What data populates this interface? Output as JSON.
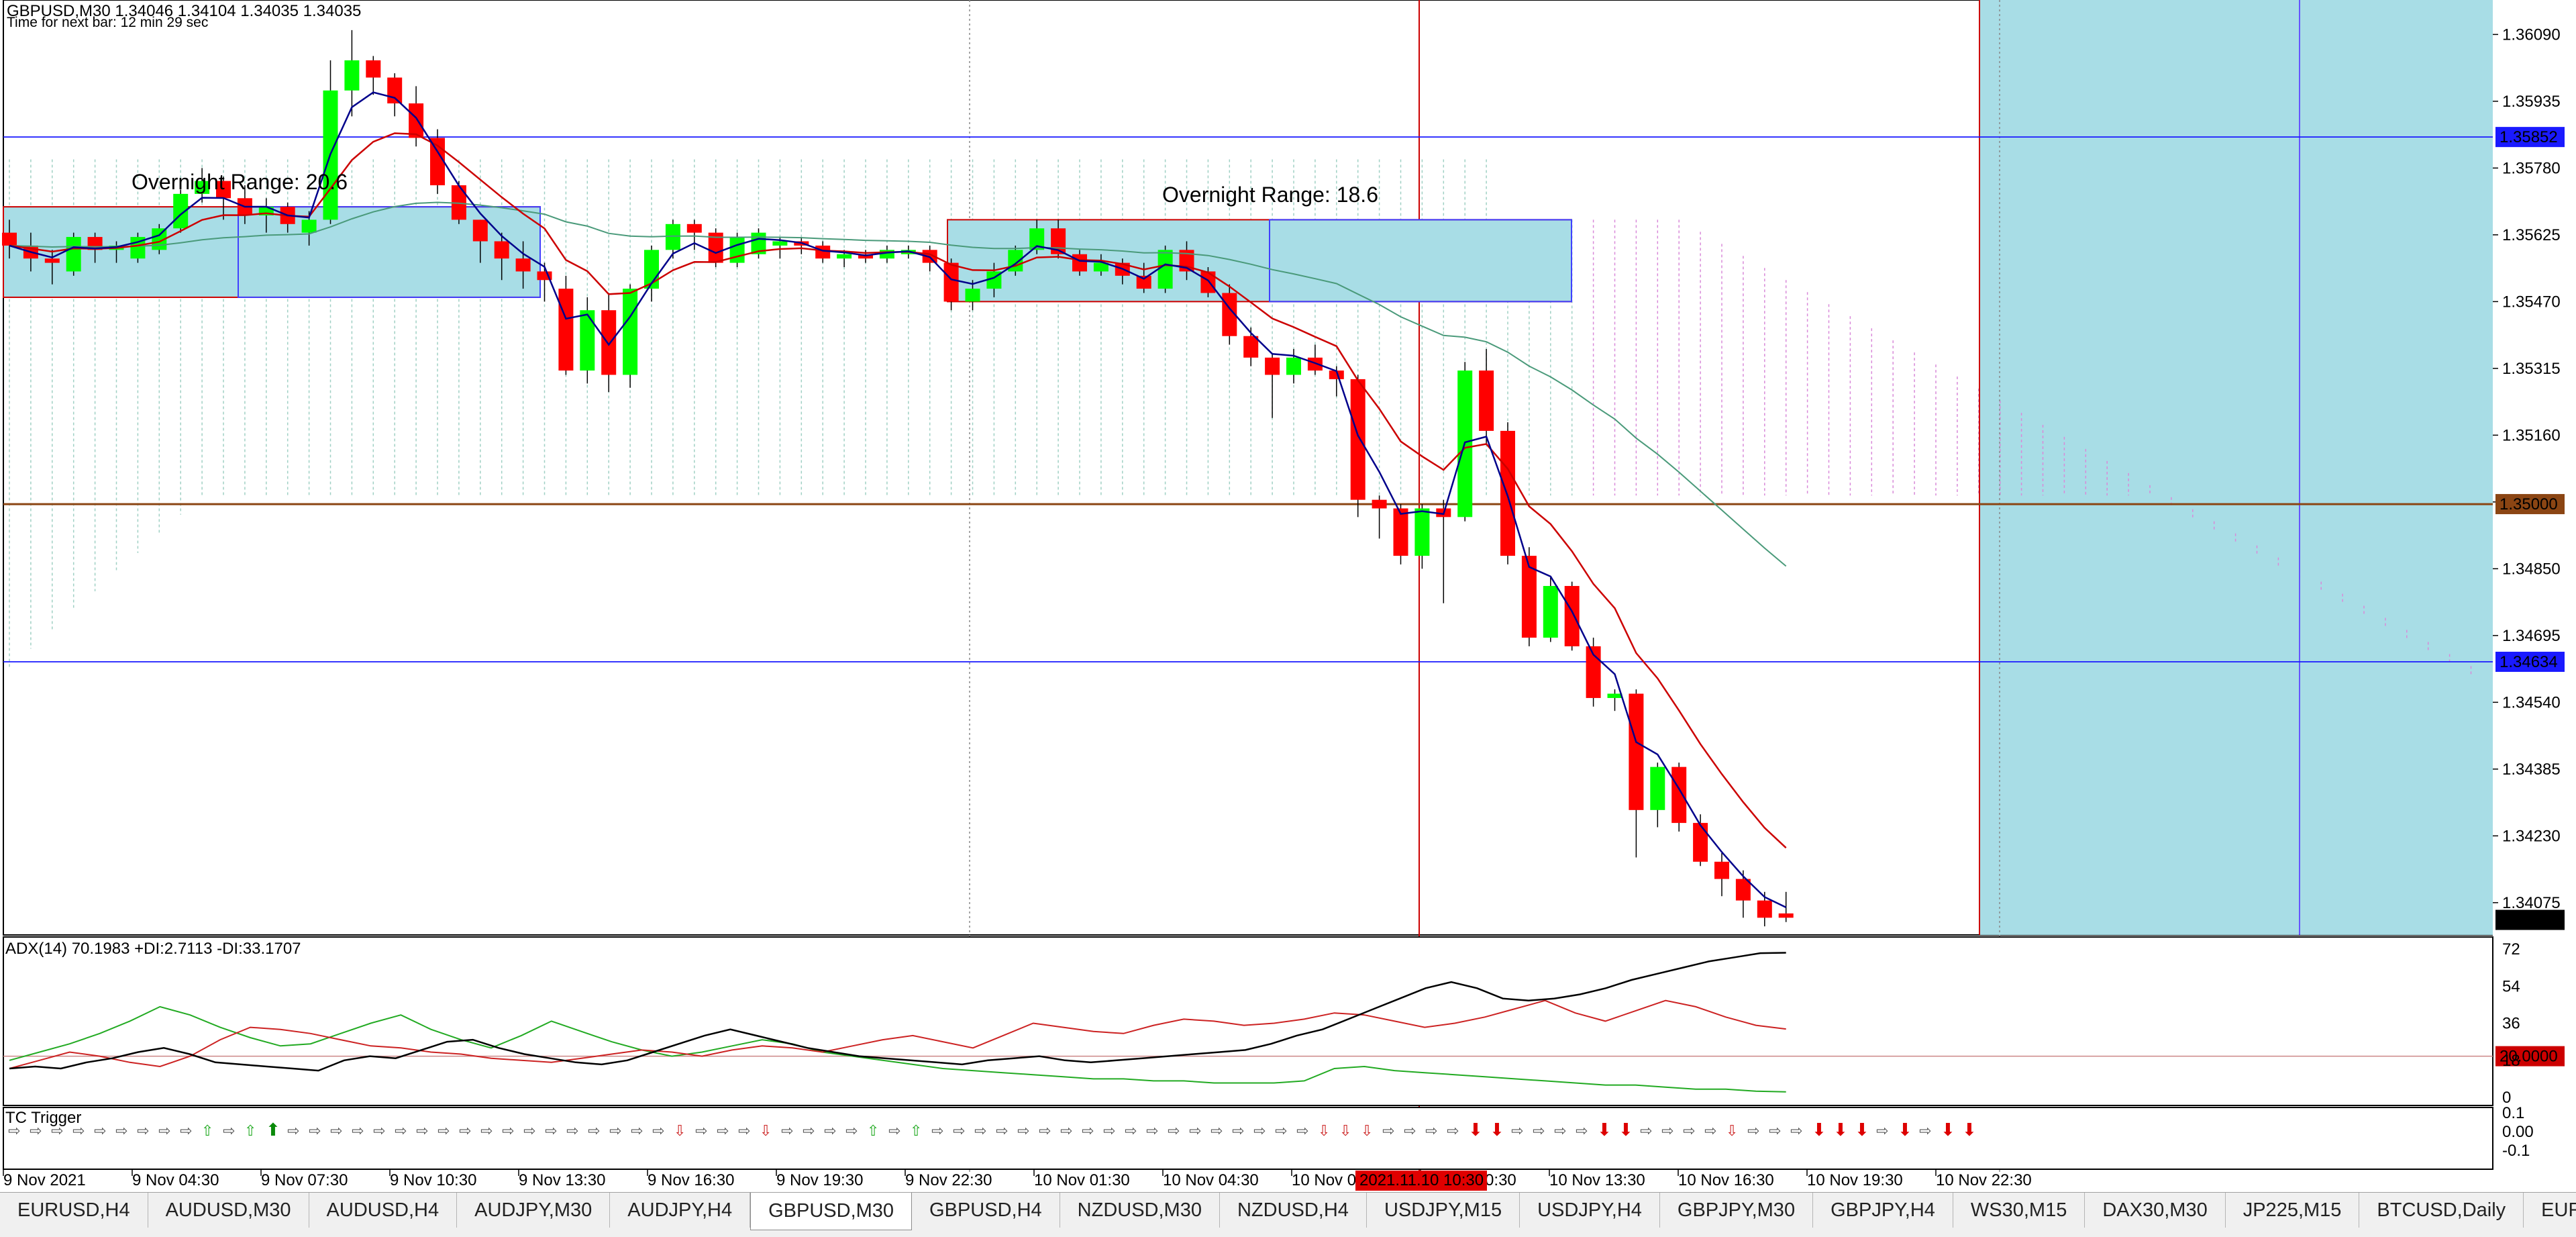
{
  "header": {
    "symbol_line": "GBPUSD,M30  1.34046 1.34104 1.34035 1.34035",
    "timer": "Time for next bar: 12 min 29 sec"
  },
  "annotations": {
    "overnight_range_1": "Overnight Range: 20.6",
    "overnight_range_2": "Overnight Range: 18.6"
  },
  "price_axis": {
    "ticks": [
      "1.36090",
      "1.35935",
      "1.35780",
      "1.35625",
      "1.35470",
      "1.35315",
      "1.35160",
      "1.35005",
      "1.34850",
      "1.34695",
      "1.34540",
      "1.34385",
      "1.34230",
      "1.34075"
    ],
    "markers": [
      {
        "price": 1.35852,
        "label": "1.35852",
        "color": "#1a1aff"
      },
      {
        "price": 1.35,
        "label": "1.35000",
        "color": "#8b4513"
      },
      {
        "price": 1.34634,
        "label": "1.34634",
        "color": "#1a1aff"
      },
      {
        "price": 1.34035,
        "label": "1.34035",
        "color": "#000000"
      }
    ]
  },
  "time_axis": {
    "labels": [
      "9 Nov 2021",
      "9 Nov 04:30",
      "9 Nov 07:30",
      "9 Nov 10:30",
      "9 Nov 13:30",
      "9 Nov 16:30",
      "9 Nov 19:30",
      "9 Nov 22:30",
      "10 Nov 01:30",
      "10 Nov 04:30",
      "10 Nov 07:30",
      "10 Nov 10:30",
      "10 Nov 13:30",
      "10 Nov 16:30",
      "10 Nov 19:30",
      "10 Nov 22:30"
    ],
    "crosshair_label": "2021.11.10 10:30"
  },
  "adx_panel": {
    "title": "ADX(14) 70.1983 +DI:2.7113 -DI:33.1707",
    "ticks": [
      "72",
      "54",
      "36",
      "18",
      "0"
    ],
    "level_label": "20.0000"
  },
  "tc_panel": {
    "title": "TC Trigger",
    "ticks": [
      "0.1",
      "0.00",
      "-0.1"
    ]
  },
  "tabs": [
    "EURUSD,H4",
    "AUDUSD,M30",
    "AUDUSD,H4",
    "AUDJPY,M30",
    "AUDJPY,H4",
    "GBPUSD,M30",
    "GBPUSD,H4",
    "NZDUSD,M30",
    "NZDUSD,H4",
    "USDJPY,M15",
    "USDJPY,H4",
    "GBPJPY,M30",
    "GBPJPY,H4",
    "WS30,M15",
    "DAX30,M30",
    "JP225,M15",
    "BTCUSD,Daily",
    "EURU"
  ],
  "active_tab": "GBPUSD,M30",
  "colors": {
    "bull": "#00ff00",
    "bear": "#ff0000",
    "cloud": "#a8dde6",
    "ema_fast": "#00008b",
    "ema_mid": "#cc0000",
    "ema_slow": "#4a9a7a"
  },
  "chart_data": {
    "type": "candlestick",
    "symbol": "GBPUSD",
    "timeframe": "M30",
    "ylim": [
      1.34,
      1.3617
    ],
    "candles": [
      {
        "o": 1.3563,
        "h": 1.3566,
        "l": 1.3557,
        "c": 1.356
      },
      {
        "o": 1.356,
        "h": 1.3563,
        "l": 1.3554,
        "c": 1.3557
      },
      {
        "o": 1.3557,
        "h": 1.3559,
        "l": 1.3551,
        "c": 1.3556
      },
      {
        "o": 1.3554,
        "h": 1.3563,
        "l": 1.3553,
        "c": 1.3562
      },
      {
        "o": 1.3562,
        "h": 1.3563,
        "l": 1.3556,
        "c": 1.3559
      },
      {
        "o": 1.3559,
        "h": 1.3561,
        "l": 1.3556,
        "c": 1.356
      },
      {
        "o": 1.3557,
        "h": 1.3563,
        "l": 1.3556,
        "c": 1.3562
      },
      {
        "o": 1.3559,
        "h": 1.3565,
        "l": 1.3558,
        "c": 1.3564
      },
      {
        "o": 1.3564,
        "h": 1.3573,
        "l": 1.3563,
        "c": 1.3572
      },
      {
        "o": 1.3572,
        "h": 1.3578,
        "l": 1.357,
        "c": 1.3575
      },
      {
        "o": 1.3575,
        "h": 1.3576,
        "l": 1.3566,
        "c": 1.3571
      },
      {
        "o": 1.3571,
        "h": 1.3574,
        "l": 1.3565,
        "c": 1.3567
      },
      {
        "o": 1.3567,
        "h": 1.3571,
        "l": 1.3563,
        "c": 1.3569
      },
      {
        "o": 1.3569,
        "h": 1.357,
        "l": 1.3563,
        "c": 1.3565
      },
      {
        "o": 1.3563,
        "h": 1.3568,
        "l": 1.356,
        "c": 1.3566
      },
      {
        "o": 1.3566,
        "h": 1.3603,
        "l": 1.3565,
        "c": 1.3596
      },
      {
        "o": 1.3596,
        "h": 1.361,
        "l": 1.359,
        "c": 1.3603
      },
      {
        "o": 1.3603,
        "h": 1.3604,
        "l": 1.3595,
        "c": 1.3599
      },
      {
        "o": 1.3599,
        "h": 1.36,
        "l": 1.359,
        "c": 1.3593
      },
      {
        "o": 1.3593,
        "h": 1.3597,
        "l": 1.3583,
        "c": 1.3585
      },
      {
        "o": 1.3585,
        "h": 1.3587,
        "l": 1.3572,
        "c": 1.3574
      },
      {
        "o": 1.3574,
        "h": 1.3575,
        "l": 1.3565,
        "c": 1.3566
      },
      {
        "o": 1.3566,
        "h": 1.3566,
        "l": 1.3556,
        "c": 1.3561
      },
      {
        "o": 1.3561,
        "h": 1.3563,
        "l": 1.3552,
        "c": 1.3557
      },
      {
        "o": 1.3557,
        "h": 1.3561,
        "l": 1.355,
        "c": 1.3554
      },
      {
        "o": 1.3554,
        "h": 1.3556,
        "l": 1.3547,
        "c": 1.3552
      },
      {
        "o": 1.355,
        "h": 1.3553,
        "l": 1.353,
        "c": 1.3531
      },
      {
        "o": 1.3531,
        "h": 1.3548,
        "l": 1.3528,
        "c": 1.3545
      },
      {
        "o": 1.3545,
        "h": 1.3549,
        "l": 1.3526,
        "c": 1.353
      },
      {
        "o": 1.353,
        "h": 1.3551,
        "l": 1.3527,
        "c": 1.355
      },
      {
        "o": 1.355,
        "h": 1.356,
        "l": 1.3547,
        "c": 1.3559
      },
      {
        "o": 1.3559,
        "h": 1.3566,
        "l": 1.3557,
        "c": 1.3565
      },
      {
        "o": 1.3565,
        "h": 1.3566,
        "l": 1.3559,
        "c": 1.3563
      },
      {
        "o": 1.3563,
        "h": 1.3564,
        "l": 1.3555,
        "c": 1.3556
      },
      {
        "o": 1.3556,
        "h": 1.3563,
        "l": 1.3555,
        "c": 1.3562
      },
      {
        "o": 1.3558,
        "h": 1.3564,
        "l": 1.3557,
        "c": 1.3563
      },
      {
        "o": 1.356,
        "h": 1.3562,
        "l": 1.3557,
        "c": 1.3561
      },
      {
        "o": 1.3561,
        "h": 1.3562,
        "l": 1.3558,
        "c": 1.356
      },
      {
        "o": 1.356,
        "h": 1.3561,
        "l": 1.3556,
        "c": 1.3557
      },
      {
        "o": 1.3557,
        "h": 1.3559,
        "l": 1.3555,
        "c": 1.3558
      },
      {
        "o": 1.3558,
        "h": 1.3559,
        "l": 1.3556,
        "c": 1.3557
      },
      {
        "o": 1.3557,
        "h": 1.356,
        "l": 1.3556,
        "c": 1.3559
      },
      {
        "o": 1.3558,
        "h": 1.356,
        "l": 1.3557,
        "c": 1.3559
      },
      {
        "o": 1.3559,
        "h": 1.356,
        "l": 1.3554,
        "c": 1.3556
      },
      {
        "o": 1.3556,
        "h": 1.3557,
        "l": 1.3545,
        "c": 1.3547
      },
      {
        "o": 1.3547,
        "h": 1.3552,
        "l": 1.3545,
        "c": 1.355
      },
      {
        "o": 1.355,
        "h": 1.3556,
        "l": 1.3548,
        "c": 1.3554
      },
      {
        "o": 1.3554,
        "h": 1.356,
        "l": 1.3553,
        "c": 1.3559
      },
      {
        "o": 1.3559,
        "h": 1.3566,
        "l": 1.3558,
        "c": 1.3564
      },
      {
        "o": 1.3564,
        "h": 1.3566,
        "l": 1.3557,
        "c": 1.3558
      },
      {
        "o": 1.3558,
        "h": 1.3559,
        "l": 1.3553,
        "c": 1.3554
      },
      {
        "o": 1.3554,
        "h": 1.3558,
        "l": 1.3553,
        "c": 1.3556
      },
      {
        "o": 1.3556,
        "h": 1.3557,
        "l": 1.3551,
        "c": 1.3553
      },
      {
        "o": 1.3553,
        "h": 1.3556,
        "l": 1.3549,
        "c": 1.355
      },
      {
        "o": 1.355,
        "h": 1.356,
        "l": 1.3549,
        "c": 1.3559
      },
      {
        "o": 1.3559,
        "h": 1.3561,
        "l": 1.3552,
        "c": 1.3554
      },
      {
        "o": 1.3554,
        "h": 1.3555,
        "l": 1.3548,
        "c": 1.3549
      },
      {
        "o": 1.3549,
        "h": 1.3551,
        "l": 1.3537,
        "c": 1.3539
      },
      {
        "o": 1.3539,
        "h": 1.3541,
        "l": 1.3532,
        "c": 1.3534
      },
      {
        "o": 1.3534,
        "h": 1.3535,
        "l": 1.352,
        "c": 1.353
      },
      {
        "o": 1.353,
        "h": 1.3536,
        "l": 1.3528,
        "c": 1.3534
      },
      {
        "o": 1.3534,
        "h": 1.3537,
        "l": 1.353,
        "c": 1.3531
      },
      {
        "o": 1.3531,
        "h": 1.3532,
        "l": 1.3525,
        "c": 1.3529
      },
      {
        "o": 1.3529,
        "h": 1.353,
        "l": 1.3497,
        "c": 1.3501
      },
      {
        "o": 1.3501,
        "h": 1.3502,
        "l": 1.3492,
        "c": 1.3499
      },
      {
        "o": 1.3499,
        "h": 1.35,
        "l": 1.3486,
        "c": 1.3488
      },
      {
        "o": 1.3488,
        "h": 1.35,
        "l": 1.3485,
        "c": 1.3499
      },
      {
        "o": 1.3499,
        "h": 1.3501,
        "l": 1.3477,
        "c": 1.3497
      },
      {
        "o": 1.3497,
        "h": 1.3533,
        "l": 1.3496,
        "c": 1.3531
      },
      {
        "o": 1.3531,
        "h": 1.3536,
        "l": 1.3514,
        "c": 1.3517
      },
      {
        "o": 1.3517,
        "h": 1.3519,
        "l": 1.3486,
        "c": 1.3488
      },
      {
        "o": 1.3488,
        "h": 1.349,
        "l": 1.3467,
        "c": 1.3469
      },
      {
        "o": 1.3469,
        "h": 1.3483,
        "l": 1.3468,
        "c": 1.3481
      },
      {
        "o": 1.3481,
        "h": 1.3482,
        "l": 1.3466,
        "c": 1.3467
      },
      {
        "o": 1.3467,
        "h": 1.3469,
        "l": 1.3453,
        "c": 1.3455
      },
      {
        "o": 1.3455,
        "h": 1.3457,
        "l": 1.3452,
        "c": 1.3456
      },
      {
        "o": 1.3456,
        "h": 1.3457,
        "l": 1.3418,
        "c": 1.3429
      },
      {
        "o": 1.3429,
        "h": 1.344,
        "l": 1.3425,
        "c": 1.3439
      },
      {
        "o": 1.3439,
        "h": 1.344,
        "l": 1.3424,
        "c": 1.3426
      },
      {
        "o": 1.3426,
        "h": 1.3428,
        "l": 1.3416,
        "c": 1.3417
      },
      {
        "o": 1.3417,
        "h": 1.3419,
        "l": 1.3409,
        "c": 1.3413
      },
      {
        "o": 1.3413,
        "h": 1.3415,
        "l": 1.3404,
        "c": 1.3408
      },
      {
        "o": 1.3408,
        "h": 1.341,
        "l": 1.3402,
        "c": 1.3404
      },
      {
        "o": 1.3405,
        "h": 1.341,
        "l": 1.3403,
        "c": 1.3404
      }
    ],
    "overnight_ranges": [
      {
        "label": "Overnight Range: 20.6",
        "high": 1.3569,
        "low": 1.3548
      },
      {
        "label": "Overnight Range: 18.6",
        "high": 1.3566,
        "low": 1.3547
      }
    ],
    "adx": {
      "adx": 70.1983,
      "plus_di": 2.7113,
      "minus_di": 33.1707,
      "level": 20,
      "ylim": [
        0,
        72
      ]
    }
  }
}
